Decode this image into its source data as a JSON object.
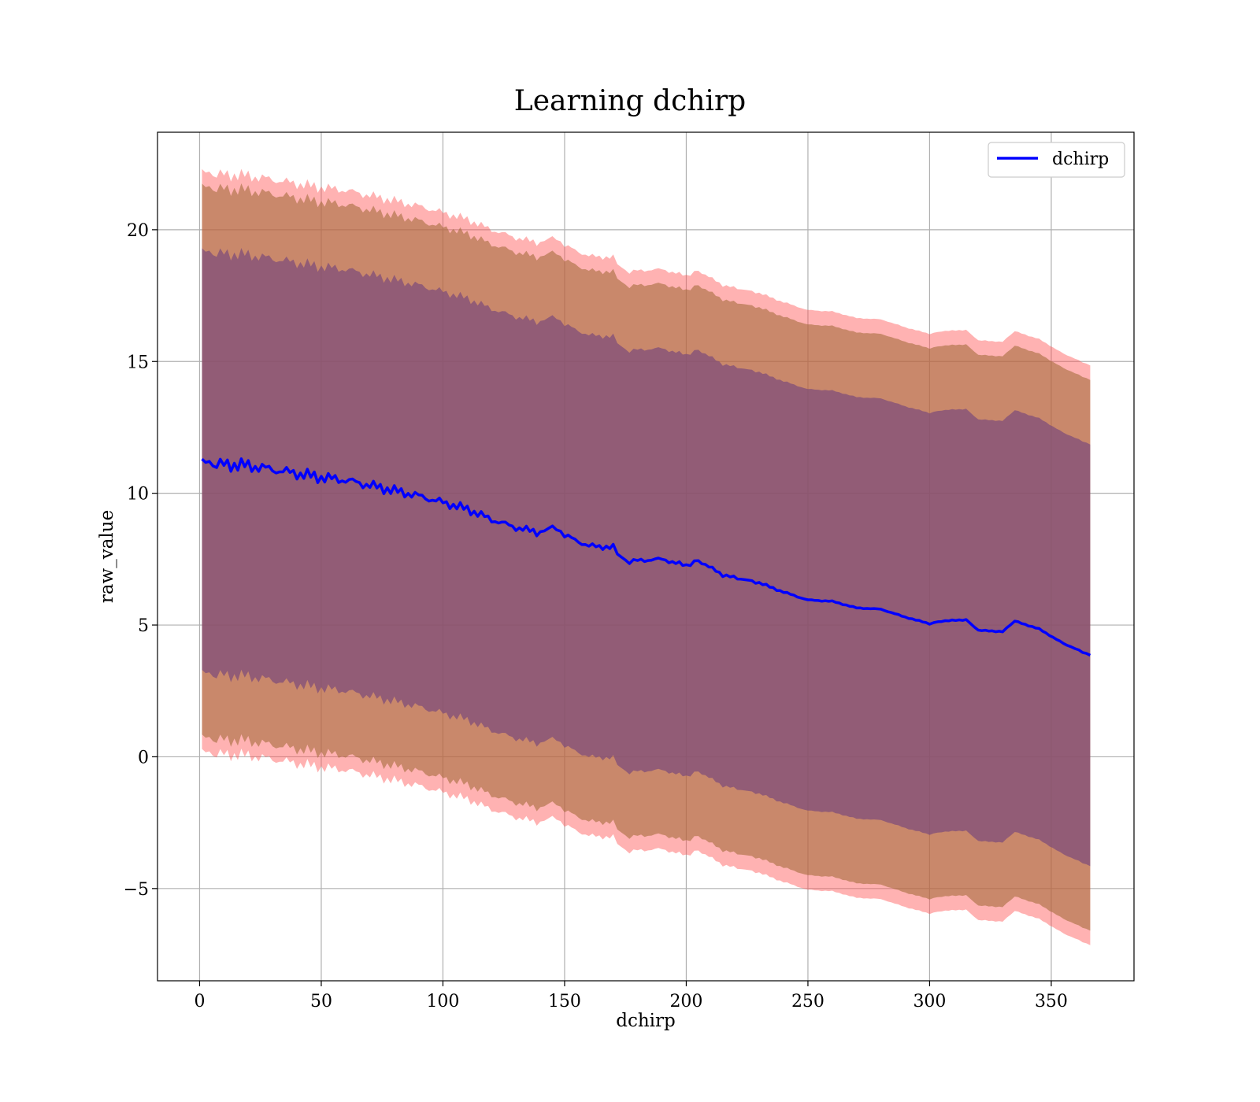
{
  "chart_data": {
    "type": "line",
    "title": "Learning dchirp",
    "xlabel": "dchirp",
    "ylabel": "raw_value",
    "xlim": [
      -17.3,
      384
    ],
    "ylim": [
      -8.5,
      23.7
    ],
    "xticks": [
      0,
      50,
      100,
      150,
      200,
      250,
      300,
      350
    ],
    "xtick_labels": [
      "0",
      "50",
      "100",
      "150",
      "200",
      "250",
      "300",
      "350"
    ],
    "yticks": [
      -5,
      0,
      5,
      10,
      15,
      20
    ],
    "ytick_labels": [
      "−5",
      "0",
      "5",
      "10",
      "15",
      "20"
    ],
    "grid": true,
    "legend": {
      "position": "top-right",
      "entries": [
        "dchirp"
      ]
    },
    "colors": {
      "line": "#0000ff",
      "band_outer": "#ff5555",
      "band_middle": "#a56c3c",
      "band_inner": "#7a4a7a"
    },
    "series": [
      {
        "name": "dchirp",
        "x": [
          1,
          10,
          20,
          30,
          40,
          50,
          60,
          70,
          80,
          90,
          100,
          110,
          120,
          130,
          140,
          145,
          150,
          160,
          170,
          175,
          180,
          190,
          200,
          205,
          215,
          230,
          240,
          250,
          260,
          270,
          280,
          290,
          300,
          305,
          315,
          320,
          330,
          335,
          345,
          355,
          366
        ],
        "y": [
          11.15,
          11.1,
          11.05,
          10.9,
          10.75,
          10.6,
          10.5,
          10.3,
          10.1,
          9.9,
          9.65,
          9.4,
          9.0,
          8.7,
          8.5,
          8.75,
          8.4,
          8.0,
          7.95,
          7.4,
          7.45,
          7.5,
          7.25,
          7.45,
          6.9,
          6.6,
          6.25,
          5.95,
          5.9,
          5.65,
          5.6,
          5.3,
          5.05,
          5.15,
          5.2,
          4.8,
          4.75,
          5.15,
          4.85,
          4.3,
          3.85
        ]
      }
    ],
    "bands": [
      {
        "level": "outer",
        "upper_offset": 11.0,
        "lower_offset": -11.0
      },
      {
        "level": "middle",
        "upper_offset": 10.45,
        "lower_offset": -10.45
      },
      {
        "level": "inner",
        "upper_offset": 8.0,
        "lower_offset": -8.0
      }
    ]
  }
}
